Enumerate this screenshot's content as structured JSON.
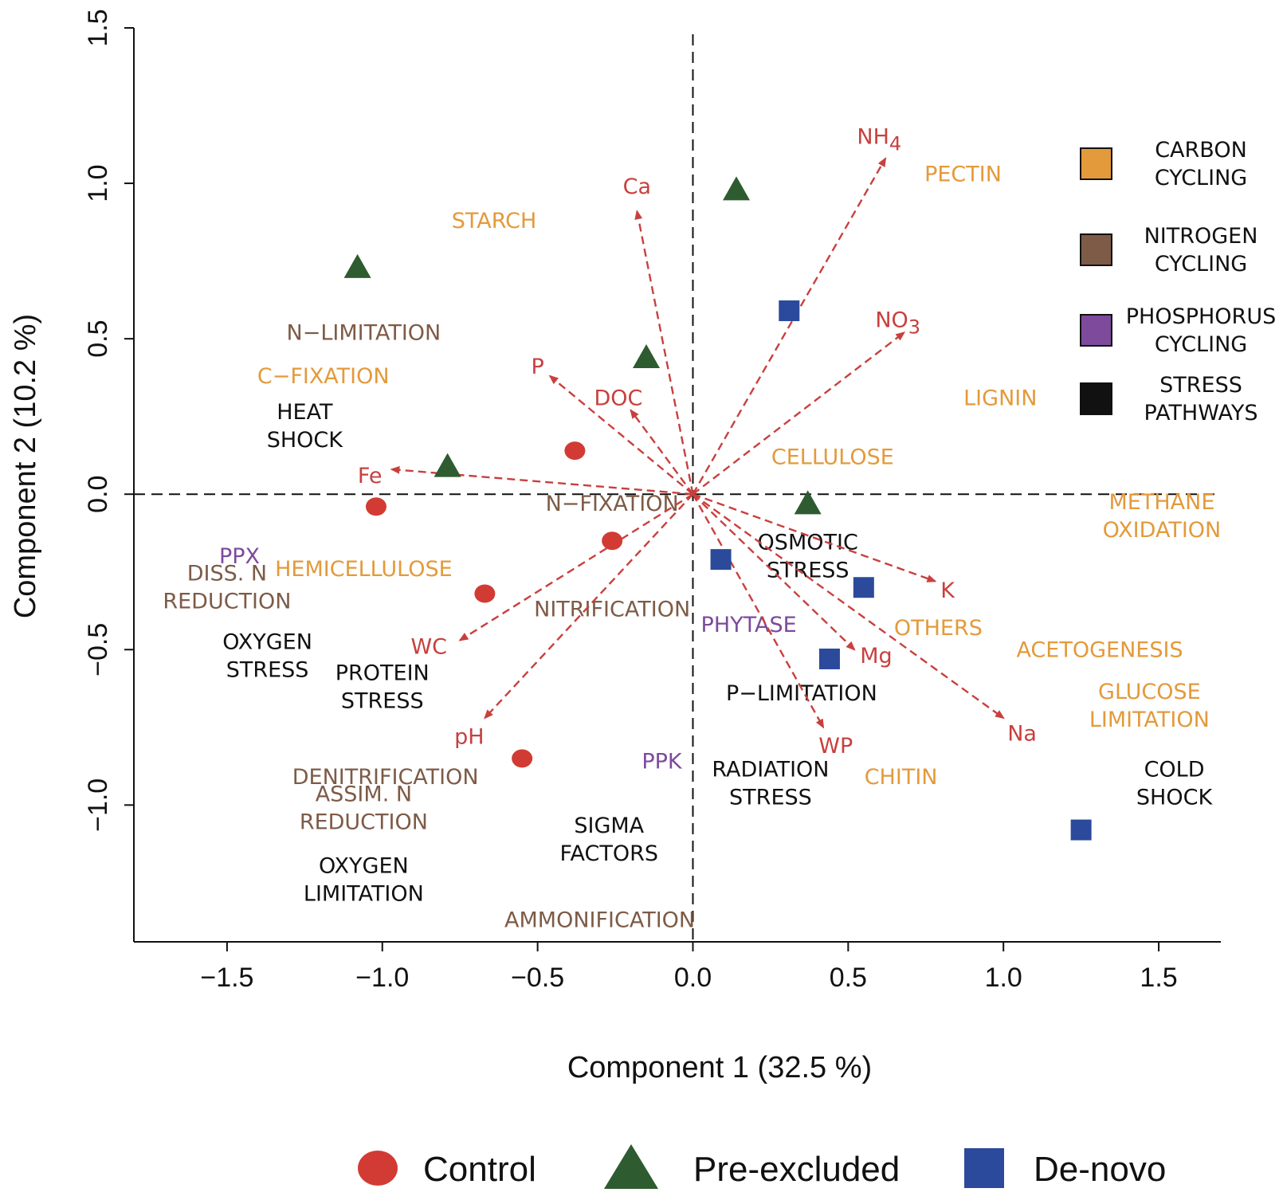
{
  "colors": {
    "carbon": "#e39a3b",
    "nitrogen": "#7d5b47",
    "phosphorus": "#7d4a9c",
    "stress": "#111111",
    "env": "#c8403e",
    "control": "#d23b33",
    "preexcluded": "#2e5b2f",
    "denovo": "#2b4a9b"
  },
  "chart_data": {
    "type": "scatter",
    "title": "",
    "xlabel": "Component 1 (32.5 %)",
    "ylabel": "Component 2 (10.2 %)",
    "xlim": [
      -1.8,
      1.7
    ],
    "ylim": [
      -1.44,
      1.5
    ],
    "xticks": [
      -1.5,
      -1.0,
      -0.5,
      0.0,
      0.5,
      1.0,
      1.5
    ],
    "yticks": [
      -1.0,
      -0.5,
      0.0,
      0.5,
      1.0,
      1.5
    ],
    "xtick_labels": [
      "−1.5",
      "−1.0",
      "−0.5",
      "0.0",
      "0.5",
      "1.0",
      "1.5"
    ],
    "ytick_labels": [
      "−1.0",
      "−0.5",
      "0.0",
      "0.5",
      "1.0",
      "1.5"
    ],
    "series": [
      {
        "name": "Control",
        "marker": "circle",
        "color_key": "control",
        "points": [
          [
            -0.38,
            0.14
          ],
          [
            -1.02,
            -0.04
          ],
          [
            -0.26,
            -0.15
          ],
          [
            -0.67,
            -0.32
          ],
          [
            -0.55,
            -0.85
          ]
        ]
      },
      {
        "name": "Pre-excluded",
        "marker": "triangle",
        "color_key": "preexcluded",
        "points": [
          [
            0.14,
            0.98
          ],
          [
            -1.08,
            0.73
          ],
          [
            -0.15,
            0.44
          ],
          [
            -0.79,
            0.09
          ],
          [
            0.37,
            -0.03
          ]
        ]
      },
      {
        "name": "De-novo",
        "marker": "square",
        "color_key": "denovo",
        "points": [
          [
            0.31,
            0.59
          ],
          [
            0.09,
            -0.21
          ],
          [
            0.55,
            -0.3
          ],
          [
            0.44,
            -0.53
          ],
          [
            1.25,
            -1.08
          ]
        ]
      }
    ],
    "vectors": [
      {
        "label": "NH",
        "sub": "4",
        "x": 0.62,
        "y": 1.08,
        "lx": 0.6,
        "ly": 1.15
      },
      {
        "label": "Ca",
        "x": -0.18,
        "y": 0.91,
        "lx": -0.18,
        "ly": 0.99
      },
      {
        "label": "NO",
        "sub": "3",
        "x": 0.68,
        "y": 0.52,
        "lx": 0.66,
        "ly": 0.56
      },
      {
        "label": "P",
        "x": -0.46,
        "y": 0.38,
        "lx": -0.5,
        "ly": 0.41
      },
      {
        "label": "DOC",
        "x": -0.2,
        "y": 0.27,
        "lx": -0.24,
        "ly": 0.31
      },
      {
        "label": "Fe",
        "x": -0.97,
        "y": 0.08,
        "lx": -1.04,
        "ly": 0.06
      },
      {
        "label": "K",
        "x": 0.78,
        "y": -0.28,
        "lx": 0.82,
        "ly": -0.31
      },
      {
        "label": "Mg",
        "x": 0.52,
        "y": -0.5,
        "lx": 0.59,
        "ly": -0.52
      },
      {
        "label": "WP",
        "x": 0.42,
        "y": -0.75,
        "lx": 0.46,
        "ly": -0.81
      },
      {
        "label": "Na",
        "x": 1.0,
        "y": -0.72,
        "lx": 1.06,
        "ly": -0.77
      },
      {
        "label": "WC",
        "x": -0.75,
        "y": -0.47,
        "lx": -0.85,
        "ly": -0.49
      },
      {
        "label": "pH",
        "x": -0.67,
        "y": -0.72,
        "lx": -0.72,
        "ly": -0.78
      }
    ],
    "function_labels": [
      {
        "lines": [
          "PECTIN"
        ],
        "cat": "carbon",
        "x": 0.87,
        "y": 1.03
      },
      {
        "lines": [
          "STARCH"
        ],
        "cat": "carbon",
        "x": -0.64,
        "y": 0.88
      },
      {
        "lines": [
          "N−LIMITATION"
        ],
        "cat": "nitrogen",
        "x": -1.06,
        "y": 0.52
      },
      {
        "lines": [
          "C−FIXATION"
        ],
        "cat": "carbon",
        "x": -1.19,
        "y": 0.38
      },
      {
        "lines": [
          "LIGNIN"
        ],
        "cat": "carbon",
        "x": 0.99,
        "y": 0.31
      },
      {
        "lines": [
          "HEAT",
          "SHOCK"
        ],
        "cat": "stress",
        "x": -1.25,
        "y": 0.22
      },
      {
        "lines": [
          "CELLULOSE"
        ],
        "cat": "carbon",
        "x": 0.45,
        "y": 0.12
      },
      {
        "lines": [
          "N−FIXATION"
        ],
        "cat": "nitrogen",
        "x": -0.26,
        "y": -0.03
      },
      {
        "lines": [
          "METHANE",
          "OXIDATION"
        ],
        "cat": "carbon",
        "x": 1.51,
        "y": -0.07
      },
      {
        "lines": [
          "PPX"
        ],
        "cat": "phosphorus",
        "x": -1.46,
        "y": -0.2
      },
      {
        "lines": [
          "HEMICELLULOSE"
        ],
        "cat": "carbon",
        "x": -1.06,
        "y": -0.24
      },
      {
        "lines": [
          "DISS. N",
          "REDUCTION"
        ],
        "cat": "nitrogen",
        "x": -1.5,
        "y": -0.3
      },
      {
        "lines": [
          "OSMOTIC",
          "STRESS"
        ],
        "cat": "stress",
        "x": 0.37,
        "y": -0.2
      },
      {
        "lines": [
          "NITRIFICATION"
        ],
        "cat": "nitrogen",
        "x": -0.26,
        "y": -0.37
      },
      {
        "lines": [
          "PHYTASE"
        ],
        "cat": "phosphorus",
        "x": 0.18,
        "y": -0.42
      },
      {
        "lines": [
          "OTHERS"
        ],
        "cat": "carbon",
        "x": 0.79,
        "y": -0.43
      },
      {
        "lines": [
          "ACETOGENESIS"
        ],
        "cat": "carbon",
        "x": 1.31,
        "y": -0.5
      },
      {
        "lines": [
          "OXYGEN",
          "STRESS"
        ],
        "cat": "stress",
        "x": -1.37,
        "y": -0.52
      },
      {
        "lines": [
          "PROTEIN",
          "STRESS"
        ],
        "cat": "stress",
        "x": -1.0,
        "y": -0.62
      },
      {
        "lines": [
          "P−LIMITATION"
        ],
        "cat": "stress",
        "x": 0.35,
        "y": -0.64
      },
      {
        "lines": [
          "GLUCOSE",
          "LIMITATION"
        ],
        "cat": "carbon",
        "x": 1.47,
        "y": -0.68
      },
      {
        "lines": [
          "PPK"
        ],
        "cat": "phosphorus",
        "x": -0.1,
        "y": -0.86
      },
      {
        "lines": [
          "DENITRIFICATION"
        ],
        "cat": "nitrogen",
        "x": -0.99,
        "y": -0.91
      },
      {
        "lines": [
          "RADIATION",
          "STRESS"
        ],
        "cat": "stress",
        "x": 0.25,
        "y": -0.93
      },
      {
        "lines": [
          "CHITIN"
        ],
        "cat": "carbon",
        "x": 0.67,
        "y": -0.91
      },
      {
        "lines": [
          "COLD",
          "SHOCK"
        ],
        "cat": "stress",
        "x": 1.55,
        "y": -0.93
      },
      {
        "lines": [
          "ASSIM. N",
          "REDUCTION"
        ],
        "cat": "nitrogen",
        "x": -1.06,
        "y": -1.01
      },
      {
        "lines": [
          "SIGMA",
          "FACTORS"
        ],
        "cat": "stress",
        "x": -0.27,
        "y": -1.11
      },
      {
        "lines": [
          "OXYGEN",
          "LIMITATION"
        ],
        "cat": "stress",
        "x": -1.06,
        "y": -1.24
      },
      {
        "lines": [
          "AMMONIFICATION"
        ],
        "cat": "nitrogen",
        "x": -0.3,
        "y": -1.37
      }
    ],
    "category_legend": [
      {
        "cat": "carbon",
        "lines": [
          "CARBON",
          "CYCLING"
        ]
      },
      {
        "cat": "nitrogen",
        "lines": [
          "NITROGEN",
          "CYCLING"
        ]
      },
      {
        "cat": "phosphorus",
        "lines": [
          "PHOSPHORUS",
          "CYCLING"
        ]
      },
      {
        "cat": "stress",
        "lines": [
          "STRESS",
          "PATHWAYS"
        ]
      }
    ],
    "group_legend": [
      "Control",
      "Pre-excluded",
      "De-novo"
    ]
  }
}
